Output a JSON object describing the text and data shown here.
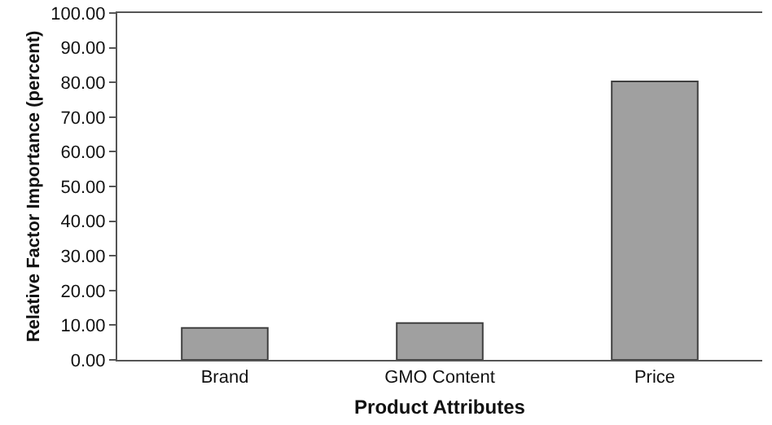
{
  "chart_data": {
    "type": "bar",
    "xlabel": "Product Attributes",
    "ylabel": "Relative Factor Importance (percent)",
    "categories": [
      "Brand",
      "GMO Content",
      "Price"
    ],
    "values": [
      9.2,
      10.6,
      80.3
    ],
    "color": "#a0a0a0",
    "ylim": [
      0,
      100
    ],
    "yticks": [
      {
        "value": 0,
        "label": "0.00"
      },
      {
        "value": 10,
        "label": "10.00"
      },
      {
        "value": 20,
        "label": "20.00"
      },
      {
        "value": 30,
        "label": "30.00"
      },
      {
        "value": 40,
        "label": "40.00"
      },
      {
        "value": 50,
        "label": "50.00"
      },
      {
        "value": 60,
        "label": "60.00"
      },
      {
        "value": 70,
        "label": "70.00"
      },
      {
        "value": 80,
        "label": "80.00"
      },
      {
        "value": 90,
        "label": "90.00"
      },
      {
        "value": 100,
        "label": "100.00"
      }
    ],
    "grid": false
  }
}
